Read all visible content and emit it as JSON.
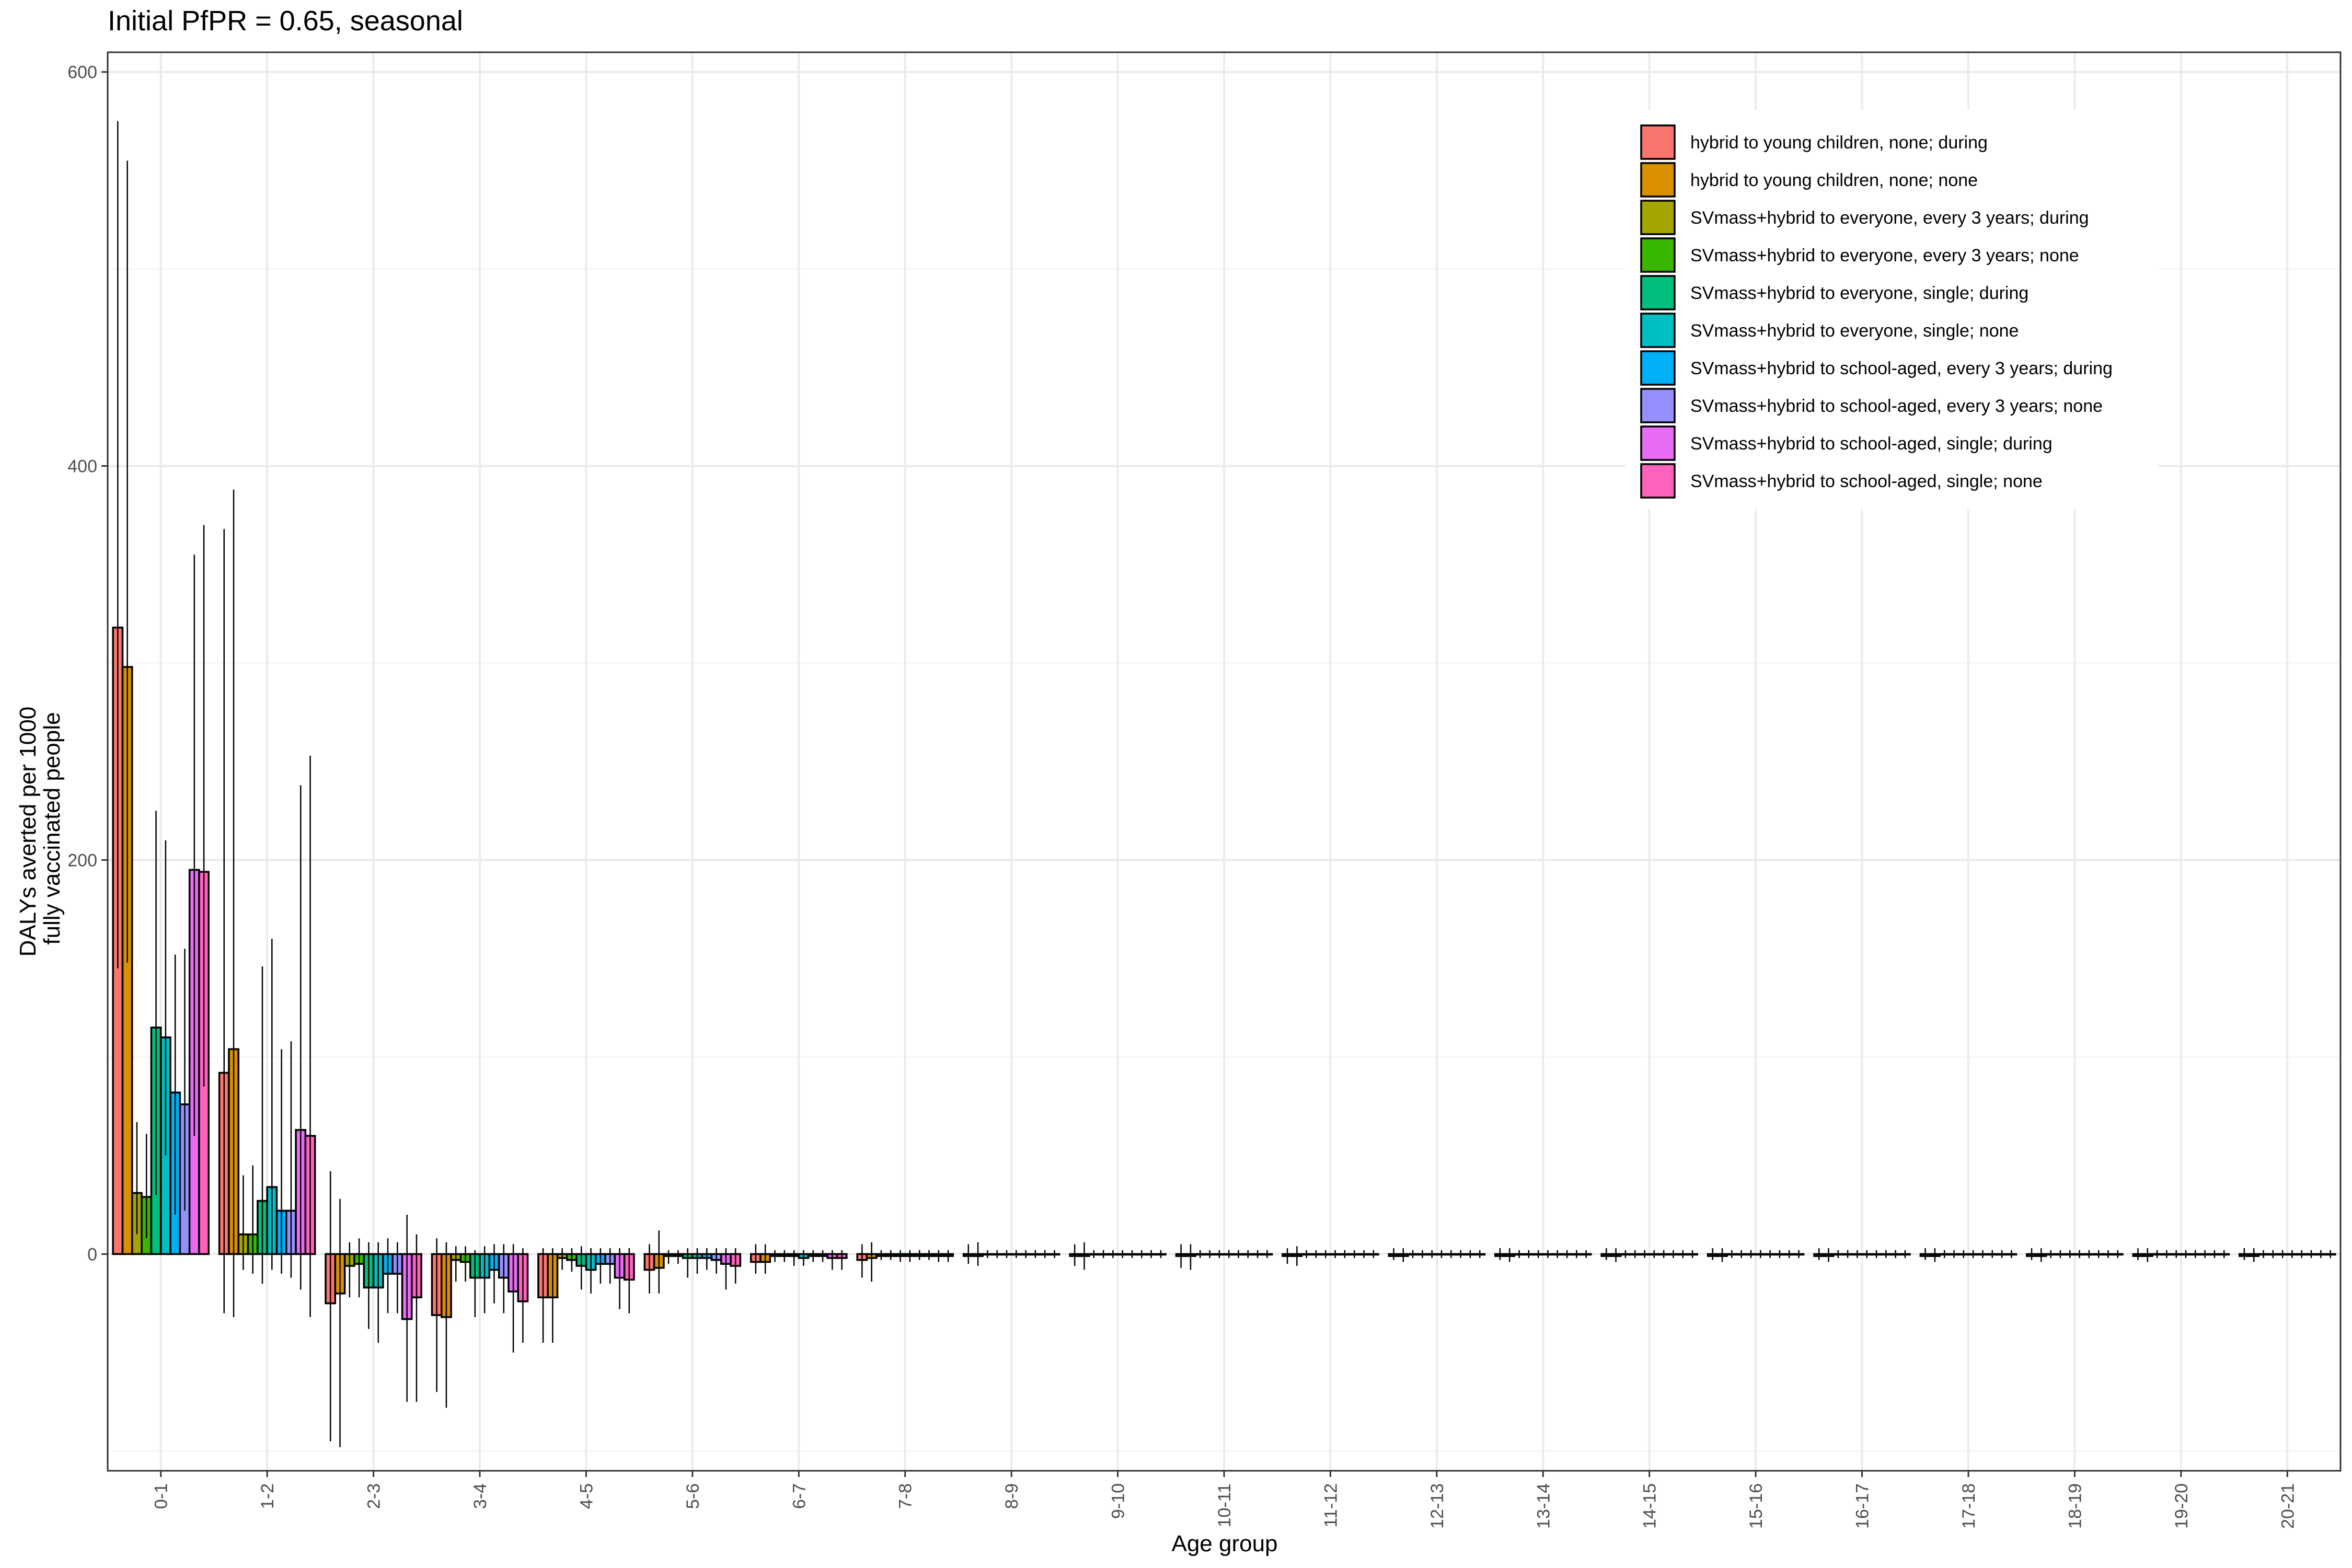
{
  "chart_data": {
    "type": "bar",
    "title": "Initial PfPR = 0.65, seasonal",
    "xlabel": "Age group",
    "ylabel_lines": [
      "DALYs averted per 1000",
      "fully vaccinated people"
    ],
    "ylim": [
      -110,
      610
    ],
    "yticks": [
      0,
      200,
      400,
      600
    ],
    "grid": true,
    "legend_position": "top-right",
    "categories": [
      "0-1",
      "1-2",
      "2-3",
      "3-4",
      "4-5",
      "5-6",
      "6-7",
      "7-8",
      "8-9",
      "9-10",
      "10-11",
      "11-12",
      "12-13",
      "13-14",
      "14-15",
      "15-16",
      "16-17",
      "17-18",
      "18-19",
      "19-20",
      "20-21"
    ],
    "series": [
      {
        "name": "hybrid to young children, none; during",
        "color": "#F8766D",
        "values": [
          318,
          92,
          -25,
          -31,
          -22,
          -8,
          -4,
          -3,
          -1,
          -1,
          -1,
          -1,
          -1,
          -1,
          -1,
          -1,
          -1,
          -1,
          -1,
          -1,
          -1
        ],
        "err_low": [
          145,
          -30,
          -95,
          -70,
          -45,
          -20,
          -10,
          -12,
          -5,
          -6,
          -7,
          -5,
          -3,
          -3,
          -3,
          -3,
          -3,
          -3,
          -3,
          -3,
          -3
        ],
        "err_high": [
          575,
          368,
          42,
          8,
          3,
          5,
          5,
          5,
          5,
          5,
          5,
          3,
          3,
          3,
          3,
          3,
          3,
          3,
          3,
          3,
          3
        ]
      },
      {
        "name": "hybrid to young children, none; none",
        "color": "#D89000",
        "values": [
          298,
          104,
          -20,
          -32,
          -22,
          -7,
          -4,
          -2,
          -1,
          -1,
          -1,
          -1,
          -1,
          -1,
          -1,
          -1,
          -1,
          -1,
          -1,
          -1,
          -1
        ],
        "err_low": [
          148,
          -32,
          -98,
          -78,
          -45,
          -20,
          -10,
          -14,
          -6,
          -8,
          -8,
          -6,
          -4,
          -4,
          -4,
          -4,
          -4,
          -4,
          -4,
          -4,
          -4
        ],
        "err_high": [
          555,
          388,
          28,
          6,
          3,
          12,
          5,
          6,
          6,
          6,
          5,
          4,
          3,
          3,
          3,
          3,
          3,
          3,
          3,
          3,
          3
        ]
      },
      {
        "name": "SVmass+hybrid to everyone, every 3 years; during",
        "color": "#A3A500",
        "values": [
          31,
          10,
          -6,
          -3,
          -2,
          -1,
          -1,
          -1,
          0,
          0,
          0,
          0,
          0,
          0,
          0,
          0,
          0,
          0,
          0,
          0,
          0
        ],
        "err_low": [
          10,
          -8,
          -22,
          -14,
          -8,
          -5,
          -4,
          -3,
          -2,
          -2,
          -2,
          -2,
          -2,
          -2,
          -2,
          -2,
          -2,
          -2,
          -2,
          -2,
          -2
        ],
        "err_high": [
          67,
          40,
          6,
          4,
          3,
          2,
          2,
          2,
          2,
          2,
          2,
          2,
          2,
          2,
          2,
          2,
          2,
          2,
          2,
          2,
          2
        ]
      },
      {
        "name": "SVmass+hybrid to everyone, every 3 years; none",
        "color": "#39B600",
        "values": [
          29,
          10,
          -5,
          -4,
          -3,
          -1,
          -1,
          -1,
          0,
          0,
          0,
          0,
          0,
          0,
          0,
          0,
          0,
          0,
          0,
          0,
          0
        ],
        "err_low": [
          8,
          -10,
          -22,
          -14,
          -9,
          -5,
          -4,
          -3,
          -2,
          -2,
          -2,
          -2,
          -2,
          -2,
          -2,
          -2,
          -2,
          -2,
          -2,
          -2,
          -2
        ],
        "err_high": [
          61,
          45,
          8,
          4,
          3,
          2,
          2,
          2,
          2,
          2,
          2,
          2,
          2,
          2,
          2,
          2,
          2,
          2,
          2,
          2,
          2
        ]
      },
      {
        "name": "SVmass+hybrid to everyone, single; during",
        "color": "#00BF7D",
        "values": [
          115,
          27,
          -17,
          -12,
          -6,
          -2,
          -1,
          -1,
          0,
          0,
          0,
          0,
          0,
          0,
          0,
          0,
          0,
          0,
          0,
          0,
          0
        ],
        "err_low": [
          30,
          -15,
          -38,
          -32,
          -18,
          -12,
          -6,
          -4,
          -2,
          -2,
          -2,
          -2,
          -2,
          -2,
          -2,
          -2,
          -2,
          -2,
          -2,
          -2,
          -2
        ],
        "err_high": [
          225,
          146,
          6,
          2,
          4,
          3,
          2,
          2,
          2,
          2,
          2,
          2,
          2,
          2,
          2,
          2,
          2,
          2,
          2,
          2,
          2
        ]
      },
      {
        "name": "SVmass+hybrid to everyone, single; none",
        "color": "#00BFC4",
        "values": [
          110,
          34,
          -17,
          -12,
          -8,
          -2,
          -2,
          -1,
          0,
          0,
          0,
          0,
          0,
          0,
          0,
          0,
          0,
          0,
          0,
          0,
          0
        ],
        "err_low": [
          50,
          -8,
          -45,
          -30,
          -20,
          -10,
          -6,
          -4,
          -2,
          -2,
          -2,
          -2,
          -2,
          -2,
          -2,
          -2,
          -2,
          -2,
          -2,
          -2,
          -2
        ],
        "err_high": [
          210,
          160,
          6,
          4,
          3,
          3,
          2,
          2,
          2,
          2,
          2,
          2,
          2,
          2,
          2,
          2,
          2,
          2,
          2,
          2,
          2
        ]
      },
      {
        "name": "SVmass+hybrid to school-aged, every 3 years; during",
        "color": "#00B0F6",
        "values": [
          82,
          22,
          -10,
          -8,
          -5,
          -2,
          -1,
          -1,
          0,
          0,
          0,
          0,
          0,
          0,
          0,
          0,
          0,
          0,
          0,
          0,
          0
        ],
        "err_low": [
          20,
          -10,
          -30,
          -25,
          -15,
          -8,
          -4,
          -3,
          -2,
          -2,
          -2,
          -2,
          -2,
          -2,
          -2,
          -2,
          -2,
          -2,
          -2,
          -2,
          -2
        ],
        "err_high": [
          152,
          104,
          8,
          5,
          3,
          3,
          2,
          2,
          2,
          2,
          2,
          2,
          2,
          2,
          2,
          2,
          2,
          2,
          2,
          2,
          2
        ]
      },
      {
        "name": "SVmass+hybrid to school-aged, every 3 years; none",
        "color": "#9590FF",
        "values": [
          76,
          22,
          -10,
          -12,
          -5,
          -3,
          -1,
          -1,
          0,
          0,
          0,
          0,
          0,
          0,
          0,
          0,
          0,
          0,
          0,
          0,
          0
        ],
        "err_low": [
          22,
          -12,
          -30,
          -30,
          -15,
          -10,
          -4,
          -3,
          -2,
          -2,
          -2,
          -2,
          -2,
          -2,
          -2,
          -2,
          -2,
          -2,
          -2,
          -2,
          -2
        ],
        "err_high": [
          155,
          108,
          6,
          5,
          3,
          3,
          2,
          2,
          2,
          2,
          2,
          2,
          2,
          2,
          2,
          2,
          2,
          2,
          2,
          2,
          2
        ]
      },
      {
        "name": "SVmass+hybrid to school-aged, single; during",
        "color": "#E76BF3",
        "values": [
          195,
          63,
          -33,
          -19,
          -12,
          -5,
          -2,
          -1,
          0,
          0,
          0,
          0,
          0,
          0,
          0,
          0,
          0,
          0,
          0,
          0,
          0
        ],
        "err_low": [
          60,
          -18,
          -75,
          -50,
          -28,
          -18,
          -8,
          -4,
          -2,
          -2,
          -2,
          -2,
          -2,
          -2,
          -2,
          -2,
          -2,
          -2,
          -2,
          -2,
          -2
        ],
        "err_high": [
          355,
          238,
          20,
          5,
          3,
          3,
          2,
          2,
          2,
          2,
          2,
          2,
          2,
          2,
          2,
          2,
          2,
          2,
          2,
          2,
          2
        ]
      },
      {
        "name": "SVmass+hybrid to school-aged, single; none",
        "color": "#FF62BC",
        "values": [
          194,
          60,
          -22,
          -24,
          -13,
          -6,
          -2,
          -1,
          0,
          0,
          0,
          0,
          0,
          0,
          0,
          0,
          0,
          0,
          0,
          0,
          0
        ],
        "err_low": [
          85,
          -32,
          -75,
          -45,
          -30,
          -15,
          -8,
          -4,
          -2,
          -2,
          -2,
          -2,
          -2,
          -2,
          -2,
          -2,
          -2,
          -2,
          -2,
          -2,
          -2
        ],
        "err_high": [
          370,
          253,
          10,
          3,
          3,
          3,
          2,
          2,
          2,
          2,
          2,
          2,
          2,
          2,
          2,
          2,
          2,
          2,
          2,
          2,
          2
        ]
      }
    ]
  }
}
